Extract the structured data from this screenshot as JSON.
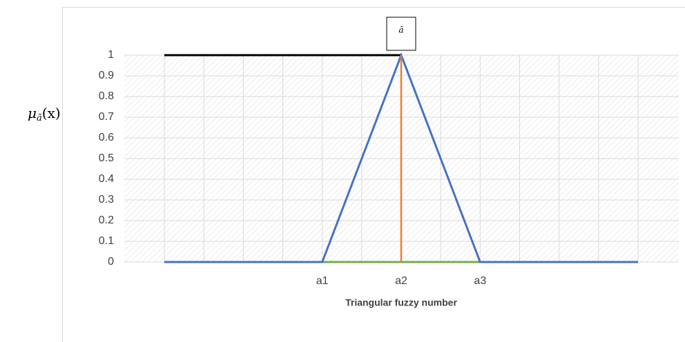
{
  "chart_data": {
    "type": "line",
    "categories": [
      null,
      null,
      null,
      null,
      "a1",
      null,
      "a2",
      null,
      "a3",
      null,
      null,
      null,
      null
    ],
    "series": [
      {
        "color": "#000000",
        "values": [
          1,
          1,
          1,
          1,
          1,
          1,
          1,
          null,
          null,
          null,
          null,
          null,
          null
        ]
      },
      {
        "color": "#70ad47",
        "values": [
          null,
          null,
          null,
          null,
          0,
          0,
          0,
          0,
          0,
          null,
          null,
          null,
          null
        ]
      },
      {
        "color": "#4472c4",
        "values": [
          0,
          0,
          0,
          0,
          0,
          0.5,
          1,
          0.5,
          0,
          0,
          0,
          0,
          0
        ]
      }
    ],
    "drop_lines": {
      "color": "#ed7d31",
      "values": [
        null,
        null,
        null,
        null,
        null,
        null,
        1,
        null,
        null,
        null,
        null,
        null,
        null
      ]
    },
    "annotation": "ã",
    "ylabel": "μ",
    "ylabel_sub": "ã",
    "ylabel_tail": "(x)",
    "xlabel": "Triangular fuzzy number",
    "ylim": [
      0,
      1
    ],
    "yticks": [
      0,
      0.1,
      0.2,
      0.3,
      0.4,
      0.5,
      0.6,
      0.7,
      0.8,
      0.9,
      1
    ],
    "grid": true
  }
}
